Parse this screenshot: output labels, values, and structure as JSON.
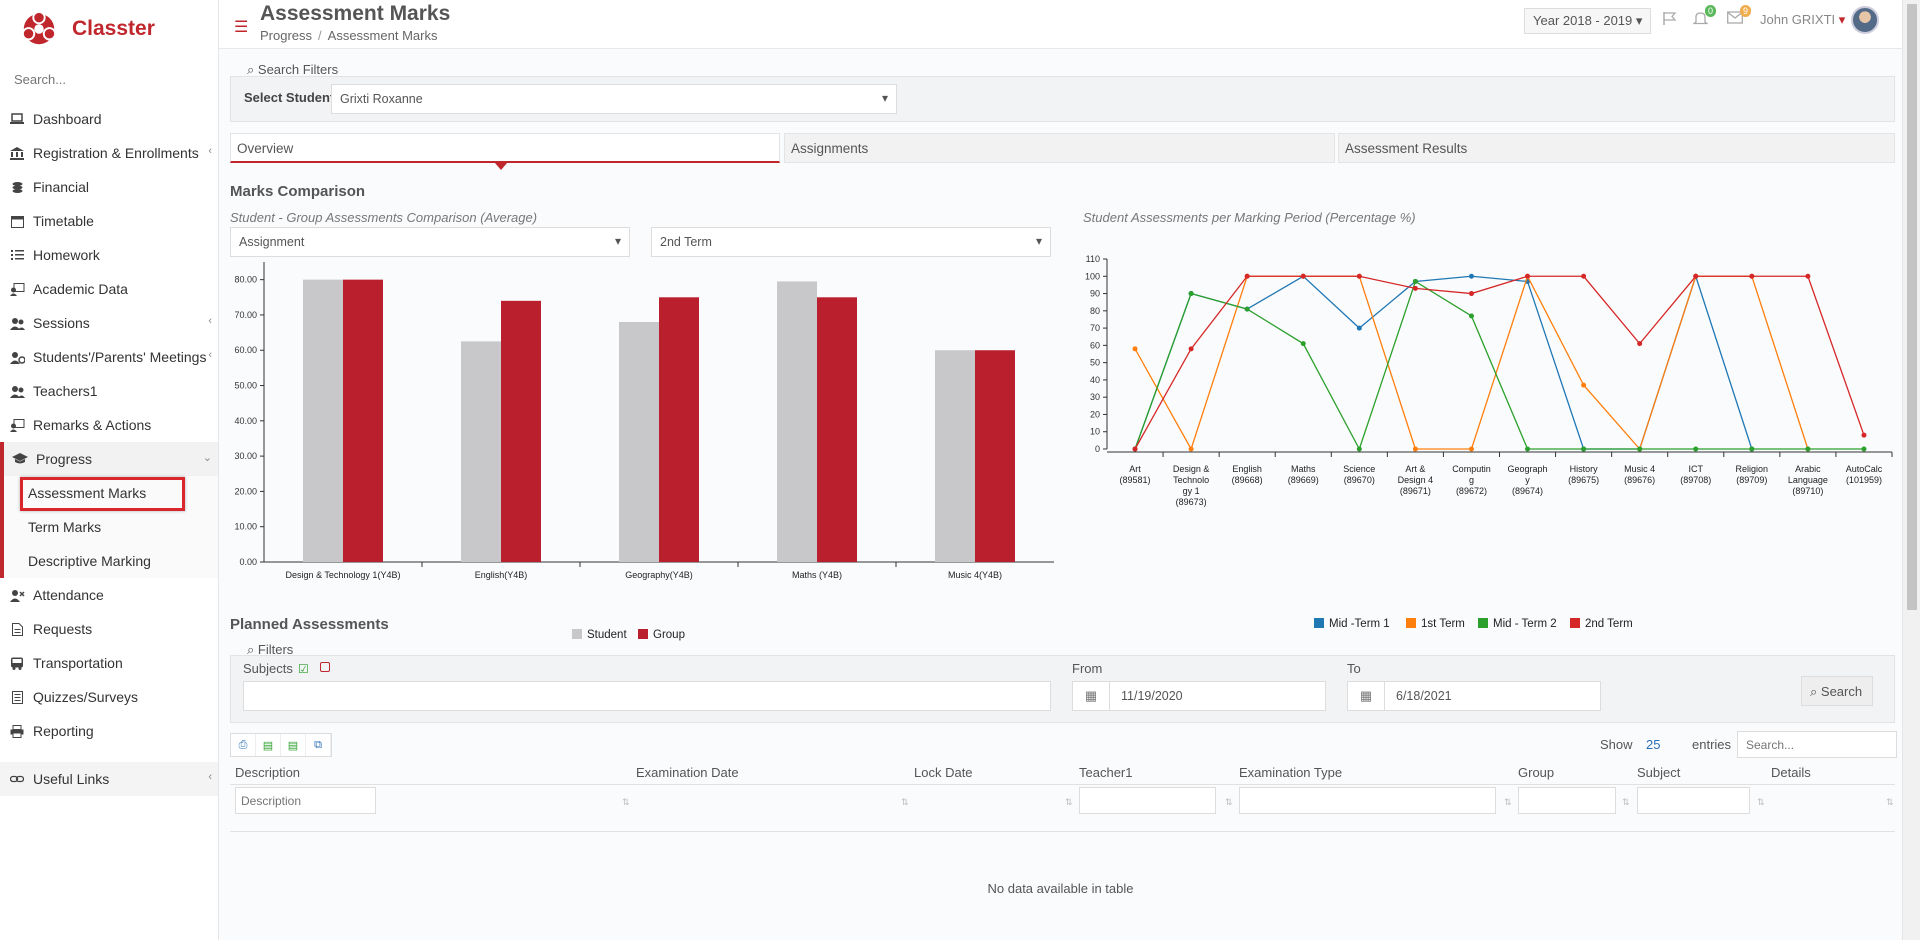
{
  "brand": {
    "name": "Classter"
  },
  "sidebar": {
    "search_placeholder": "Search...",
    "items": [
      {
        "label": "Dashboard",
        "icon": "laptop-icon"
      },
      {
        "label": "Registration & Enrollments",
        "icon": "bank-icon"
      },
      {
        "label": "Financial",
        "icon": "coins-icon"
      },
      {
        "label": "Timetable",
        "icon": "calendar-icon"
      },
      {
        "label": "Homework",
        "icon": "list-icon"
      },
      {
        "label": "Academic Data",
        "icon": "user-board-icon"
      },
      {
        "label": "Sessions",
        "icon": "users-icon"
      },
      {
        "label": "Students'/Parents' Meetings",
        "icon": "meeting-icon"
      },
      {
        "label": "Teachers1",
        "icon": "users-icon"
      },
      {
        "label": "Remarks & Actions",
        "icon": "user-board-icon"
      },
      {
        "label": "Progress",
        "icon": "graduation-cap-icon"
      }
    ],
    "progress_sub": [
      "Assessment Marks",
      "Term Marks",
      "Descriptive Marking"
    ],
    "items2": [
      {
        "label": "Attendance",
        "icon": "user-x-icon"
      },
      {
        "label": "Requests",
        "icon": "document-icon"
      },
      {
        "label": "Transportation",
        "icon": "bus-icon"
      },
      {
        "label": "Quizzes/Surveys",
        "icon": "checklist-icon"
      },
      {
        "label": "Reporting",
        "icon": "print-icon"
      }
    ],
    "useful_links": "Useful Links"
  },
  "header": {
    "title": "Assessment Marks",
    "breadcrumb": [
      "Progress",
      "Assessment Marks"
    ],
    "year": "Year 2018 - 2019",
    "notifications_count": "0",
    "messages_count": "9",
    "user": "John GRIXTI"
  },
  "search_filters": {
    "title": "Search Filters",
    "student_label": "Select Student",
    "student_value": "Grixti Roxanne"
  },
  "tabs": [
    "Overview",
    "Assignments",
    "Assessment Results"
  ],
  "marks_comparison": {
    "title": "Marks Comparison",
    "bar_subtitle": "Student - Group Assessments Comparison (Average)",
    "type_select": "Assignment",
    "term_select": "2nd Term",
    "line_subtitle": "Student Assessments per Marking Period (Percentage %)"
  },
  "chart_data": [
    {
      "type": "bar",
      "title": "Student - Group Assessments Comparison (Average)",
      "categories": [
        "Design & Technology 1(Y4B)",
        "English(Y4B)",
        "Geography(Y4B)",
        "Maths (Y4B)",
        "Music 4(Y4B)"
      ],
      "series": [
        {
          "name": "Student",
          "color": "#c8c8ca",
          "values": [
            80,
            62.5,
            68,
            79.5,
            60
          ]
        },
        {
          "name": "Group",
          "color": "#b91f2c",
          "values": [
            80,
            74,
            75,
            75,
            60
          ]
        }
      ],
      "yticks": [
        "0.00",
        "10.00",
        "20.00",
        "30.00",
        "40.00",
        "50.00",
        "60.00",
        "70.00",
        "80.00"
      ],
      "ylim": [
        0,
        85
      ],
      "legend": "bottom"
    },
    {
      "type": "line",
      "title": "Student Assessments per Marking Period (Percentage %)",
      "categories": [
        [
          "Art",
          "(89581)"
        ],
        [
          "Design &",
          "Technolo",
          "gy 1",
          "(89673)"
        ],
        [
          "English",
          "(89668)"
        ],
        [
          "Maths",
          "(89669)"
        ],
        [
          "Science",
          "(89670)"
        ],
        [
          "Art &",
          "Design 4",
          "(89671)"
        ],
        [
          "Computin",
          "g",
          "(89672)"
        ],
        [
          "Geograph",
          "y",
          "(89674)"
        ],
        [
          "History",
          "(89675)"
        ],
        [
          "Music 4",
          "(89676)"
        ],
        [
          "ICT",
          "(89708)"
        ],
        [
          "Religion",
          "(89709)"
        ],
        [
          "Arabic",
          "Language",
          "",
          "(89710)"
        ],
        [
          "AutoCalc",
          "(101959)"
        ]
      ],
      "yticks": [
        0,
        10,
        20,
        30,
        40,
        50,
        60,
        70,
        80,
        90,
        100,
        110
      ],
      "ylim": [
        0,
        110
      ],
      "series": [
        {
          "name": "Mid -Term 1",
          "color": "#1f77b4",
          "values": [
            0,
            90,
            81,
            100,
            70,
            97,
            100,
            97,
            0,
            0,
            100,
            0,
            null,
            null
          ]
        },
        {
          "name": "1st Term",
          "color": "#ff7f0e",
          "values": [
            58,
            0,
            100,
            100,
            100,
            0,
            0,
            100,
            37,
            0,
            100,
            100,
            0,
            null
          ]
        },
        {
          "name": "Mid - Term 2",
          "color": "#2ca02c",
          "values": [
            0,
            90,
            81,
            61,
            0,
            97,
            77,
            0,
            0,
            0,
            0,
            0,
            0,
            0
          ]
        },
        {
          "name": "2nd Term",
          "color": "#d62728",
          "values": [
            0,
            58,
            100,
            100,
            100,
            93,
            90,
            100,
            100,
            61,
            100,
            100,
            100,
            8
          ]
        }
      ],
      "legend": "bottom"
    }
  ],
  "planned": {
    "title": "Planned Assessments",
    "filters_title": "Filters",
    "subjects_label": "Subjects",
    "from_label": "From",
    "from_value": "11/19/2020",
    "to_label": "To",
    "to_value": "6/18/2021",
    "search_button": "Search",
    "show_label": "Show",
    "show_value": "25",
    "entries_label": "entries",
    "search_placeholder": "Search...",
    "columns": [
      "Description",
      "Examination Date",
      "Lock Date",
      "Teacher1",
      "Examination Type",
      "Group",
      "Subject",
      "Details"
    ],
    "description_filter_placeholder": "Description",
    "empty_message": "No data available in table"
  }
}
